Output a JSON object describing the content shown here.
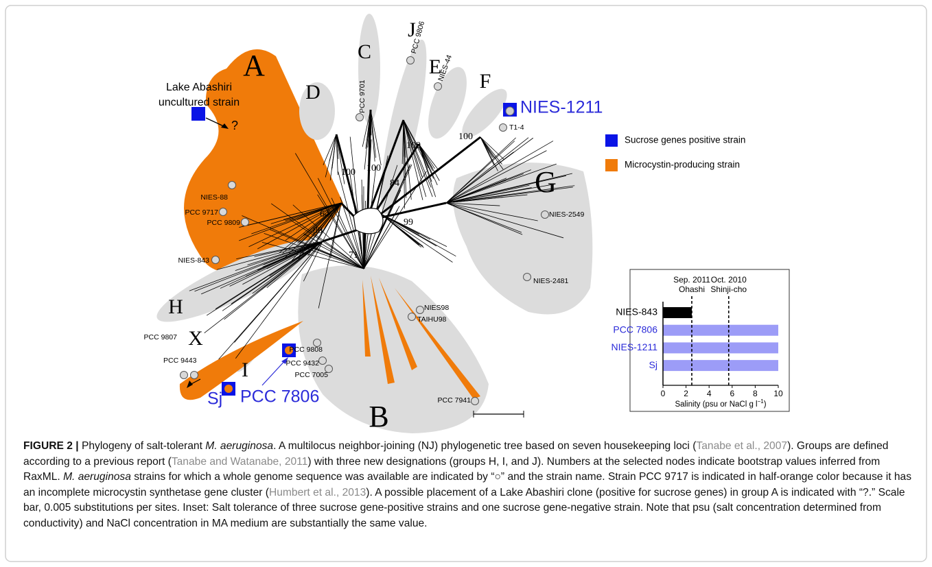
{
  "figure": {
    "tree": {
      "groups": [
        "A",
        "B",
        "C",
        "D",
        "E",
        "F",
        "G",
        "H",
        "I",
        "J",
        "X"
      ],
      "annotation": [
        "Lake Abashiri",
        "uncultured strain"
      ],
      "placement": "?",
      "highlighted": [
        "NIES-1211",
        "Sj",
        "PCC 7806"
      ],
      "strains": [
        "PCC 9701",
        "PCC 9806",
        "NIES-44",
        "T1-4",
        "NIES-88",
        "PCC 9717",
        "PCC 9809",
        "NIES-843",
        "NIES-2549",
        "NIES-2481",
        "NIES98",
        "TAIHU98",
        "PCC 9808",
        "PCC 9432",
        "PCC 7005",
        "PCC 9807",
        "PCC 9443",
        "PCC 7941"
      ],
      "bootstrap": [
        100,
        100,
        100,
        100,
        84,
        64,
        80,
        99,
        71
      ]
    },
    "legend": [
      {
        "label": "Sucrose genes positive strain",
        "color": "#0a14e6"
      },
      {
        "label": "Microcystin-producing strain",
        "color": "#f07b0a"
      }
    ]
  },
  "chart_data": {
    "type": "hbar",
    "categories": [
      "NIES-843",
      "PCC 7806",
      "NIES-1211",
      "Sj"
    ],
    "values": [
      2.5,
      10,
      10,
      10
    ],
    "colors": [
      "#000000",
      "#9c9cf7",
      "#9c9cf7",
      "#9c9cf7"
    ],
    "label_colors": [
      "#000000",
      "#2b2bd9",
      "#2b2bd9",
      "#2b2bd9"
    ],
    "xlim": [
      0,
      10
    ],
    "xticks": [
      0,
      2,
      4,
      6,
      8,
      10
    ],
    "xlabel": [
      "Salinity (psu or NaCl g l",
      "−1",
      ")"
    ],
    "reference_lines": [
      {
        "value": 2.5,
        "label": [
          "Sep. 2011",
          "Ohashi"
        ]
      },
      {
        "value": 5.7,
        "label": [
          "Oct. 2010",
          "Shinji-cho"
        ]
      }
    ]
  },
  "caption": [
    {
      "text": "FIGURE 2 |",
      "style": "bold"
    },
    {
      "text": " Phylogeny of salt-tolerant ",
      "style": "plain"
    },
    {
      "text": "M. aeruginosa",
      "style": "italic"
    },
    {
      "text": ". A multilocus neighbor-joining (NJ) phylogenetic tree based on seven housekeeping loci (",
      "style": "plain"
    },
    {
      "text": "Tanabe et al., 2007",
      "style": "cite"
    },
    {
      "text": "). Groups are defined according to a previous report (",
      "style": "plain"
    },
    {
      "text": "Tanabe and Watanabe, 2011",
      "style": "cite"
    },
    {
      "text": ") with three new designations (groups H, I, and J). Numbers at the selected nodes indicate bootstrap values inferred from RaxML. ",
      "style": "plain"
    },
    {
      "text": "M. aeruginosa",
      "style": "italic"
    },
    {
      "text": " strains for which a whole genome sequence was available are indicated by “○” and the strain name. Strain PCC 9717 is indicated in half-orange color because it has an incomplete microcystin synthetase gene cluster (",
      "style": "plain"
    },
    {
      "text": "Humbert et al., 2013",
      "style": "cite"
    },
    {
      "text": "). A possible placement of a Lake Abashiri clone (positive for sucrose genes) in group A is indicated with “?.” Scale bar, 0.005 substitutions per sites. Inset: Salt tolerance of three sucrose gene-positive strains and one sucrose gene-negative strain. Note that psu (salt concentration determined from conductivity) and NaCl concentration in MA medium are substantially the same value.",
      "style": "plain"
    }
  ]
}
